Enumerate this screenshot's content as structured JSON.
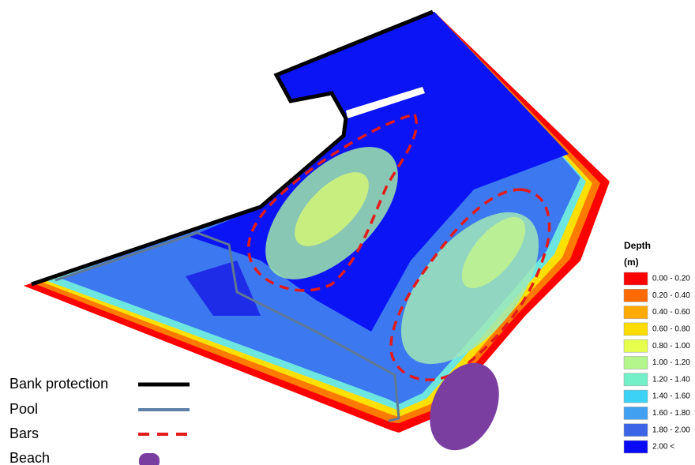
{
  "legend": {
    "title": "Depth",
    "unit": "(m)",
    "classes": [
      {
        "label": "0.00 - 0.20",
        "color": "#ff0000"
      },
      {
        "label": "0.20 - 0.40",
        "color": "#ff6a00"
      },
      {
        "label": "0.40 - 0.60",
        "color": "#ffaa00"
      },
      {
        "label": "0.60 - 0.80",
        "color": "#ffdc00"
      },
      {
        "label": "0.80 - 1.00",
        "color": "#e6ff4d"
      },
      {
        "label": "1.00 - 1.20",
        "color": "#b4f58c"
      },
      {
        "label": "1.20 - 1.40",
        "color": "#73f0c8"
      },
      {
        "label": "1.40 - 1.60",
        "color": "#3cd2f5"
      },
      {
        "label": "1.60 - 1.80",
        "color": "#41a0f0"
      },
      {
        "label": "1.80 - 2.00",
        "color": "#3c64e6"
      },
      {
        "label": "2.00 <",
        "color": "#0a0af5"
      }
    ]
  },
  "key": {
    "items": [
      {
        "label": "Bank protection"
      },
      {
        "label": "Pool"
      },
      {
        "label": "Bars"
      },
      {
        "label": "Beach"
      }
    ]
  }
}
